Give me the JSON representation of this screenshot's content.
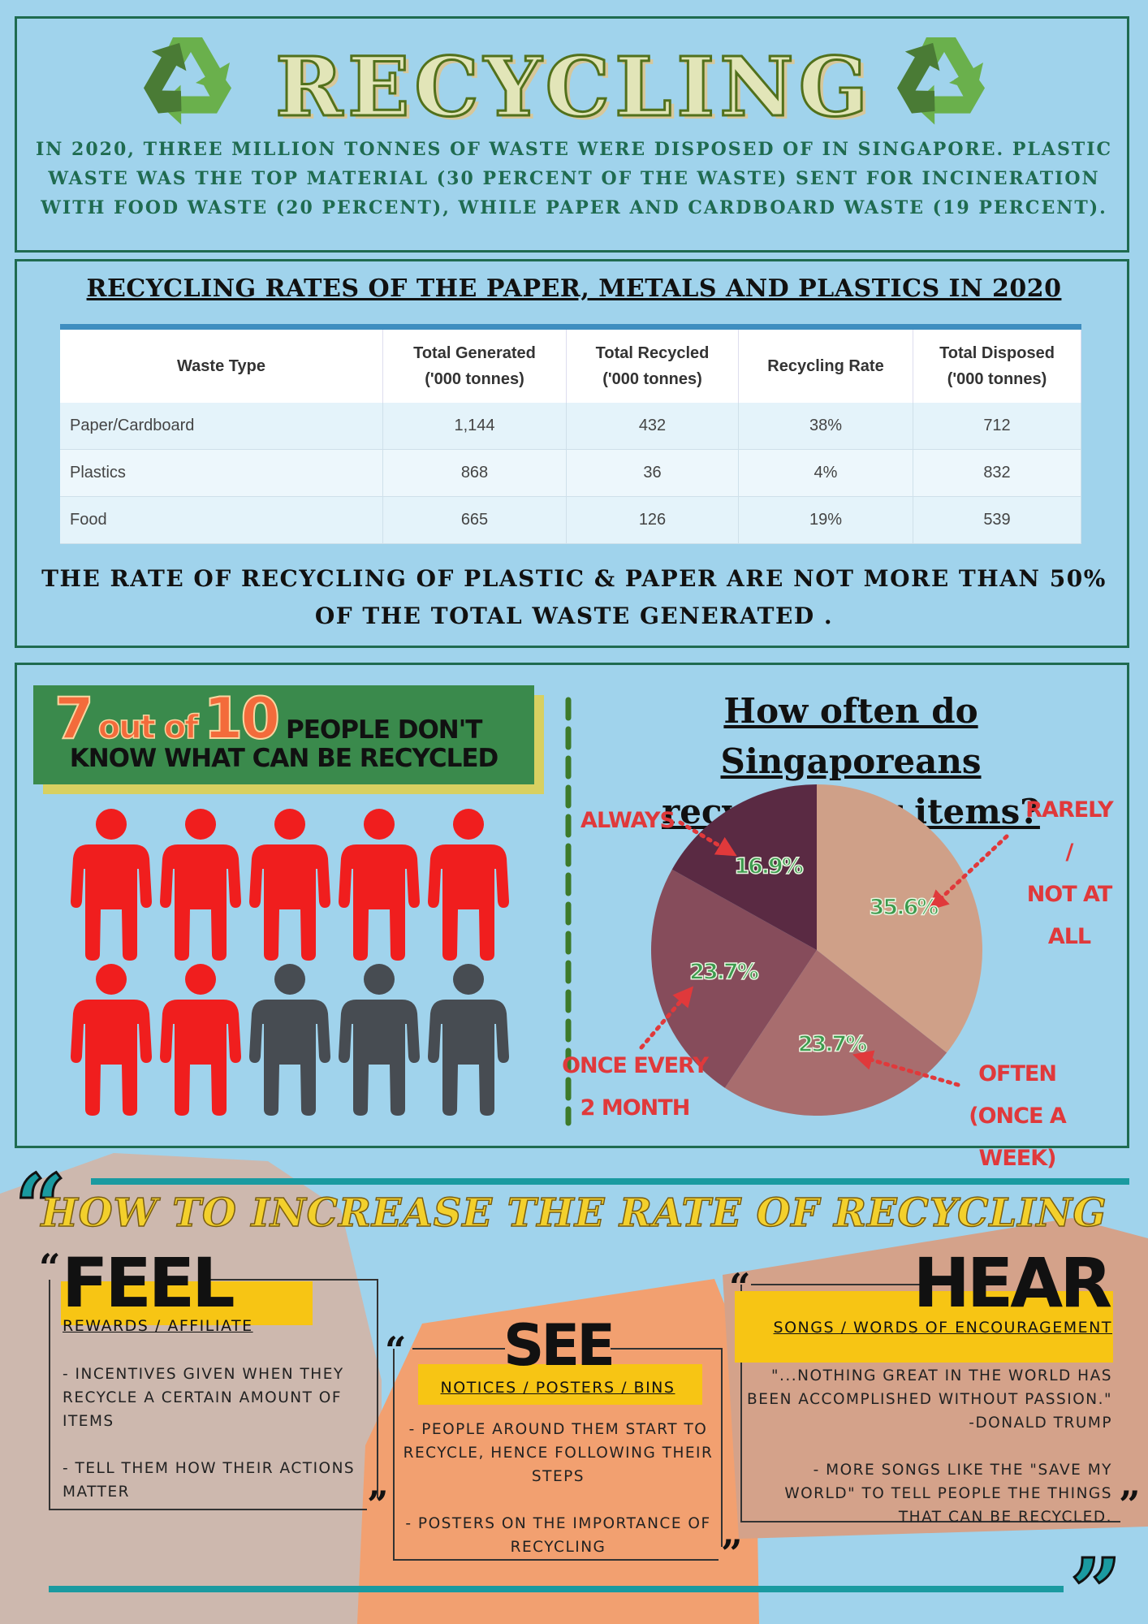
{
  "header": {
    "title": "RECYCLING",
    "intro": "IN 2020, THREE MILLION TONNES OF WASTE WERE DISPOSED OF IN SINGAPORE. PLASTIC WASTE WAS THE TOP MATERIAL (30 PERCENT OF THE WASTE) SENT FOR INCINERATION WITH FOOD WASTE (20 PERCENT), WHILE PAPER AND CARDBOARD WASTE (19 PERCENT)."
  },
  "table_section": {
    "title": "RECYCLING RATES OF THE PAPER, METALS AND PLASTICS IN 2020",
    "table": {
      "columns": [
        "Waste Type",
        "Total Generated\n('000 tonnes)",
        "Total Recycled\n('000 tonnes)",
        "Recycling Rate",
        "Total Disposed\n('000 tonnes)"
      ],
      "rows": [
        [
          "Paper/Cardboard",
          "1,144",
          "432",
          "38%",
          "712"
        ],
        [
          "Plastics",
          "868",
          "36",
          "4%",
          "832"
        ],
        [
          "Food",
          "665",
          "126",
          "19%",
          "539"
        ]
      ]
    },
    "note": "THE RATE OF RECYCLING OF PLASTIC & PAPER ARE NOT MORE THAN 50%\nOF THE TOTAL WASTE GENERATED ."
  },
  "people_section": {
    "count": 7,
    "out_of": "out of",
    "total": 10,
    "line1": "PEOPLE DON'T",
    "line2": "KNOW WHAT CAN BE RECYCLED"
  },
  "chart_data": {
    "type": "pie",
    "title": "How often do Singaporeans\nrecycle their items?",
    "categories": [
      "RARELY /\nNOT AT ALL",
      "OFTEN\n(ONCE A WEEK)",
      "ONCE EVERY\n2 MONTH",
      "ALWAYS"
    ],
    "values": [
      35.6,
      23.7,
      23.7,
      16.9
    ],
    "value_labels": [
      "35.6%",
      "23.7%",
      "23.7%",
      "16.9%"
    ],
    "colors": [
      "#cfa088",
      "#a86d6e",
      "#864c5b",
      "#5a2a43"
    ]
  },
  "tips": {
    "title": "HOW TO INCREASE THE RATE OF RECYCLING",
    "quote_open": "“",
    "quote_close": "”",
    "cards": [
      {
        "heading": "FEEL",
        "subtitle": "REWARDS / AFFILIATE",
        "points": [
          "- INCENTIVES GIVEN WHEN THEY RECYCLE A CERTAIN AMOUNT OF ITEMS",
          "- TELL THEM HOW THEIR ACTIONS MATTER"
        ]
      },
      {
        "heading": "SEE",
        "subtitle": "NOTICES / POSTERS / BINS",
        "points": [
          "- PEOPLE AROUND THEM START TO RECYCLE, HENCE FOLLOWING THEIR STEPS",
          "- POSTERS ON THE IMPORTANCE OF RECYCLING"
        ]
      },
      {
        "heading": "HEAR",
        "subtitle": "SONGS / WORDS OF ENCOURAGEMENT",
        "points": [
          "\"...NOTHING GREAT IN THE WORLD HAS BEEN ACCOMPLISHED WITHOUT PASSION.\" -DONALD TRUMP",
          "- MORE SONGS LIKE THE \"SAVE MY WORLD\" TO TELL PEOPLE THE THINGS THAT CAN BE RECYCLED."
        ]
      }
    ]
  }
}
